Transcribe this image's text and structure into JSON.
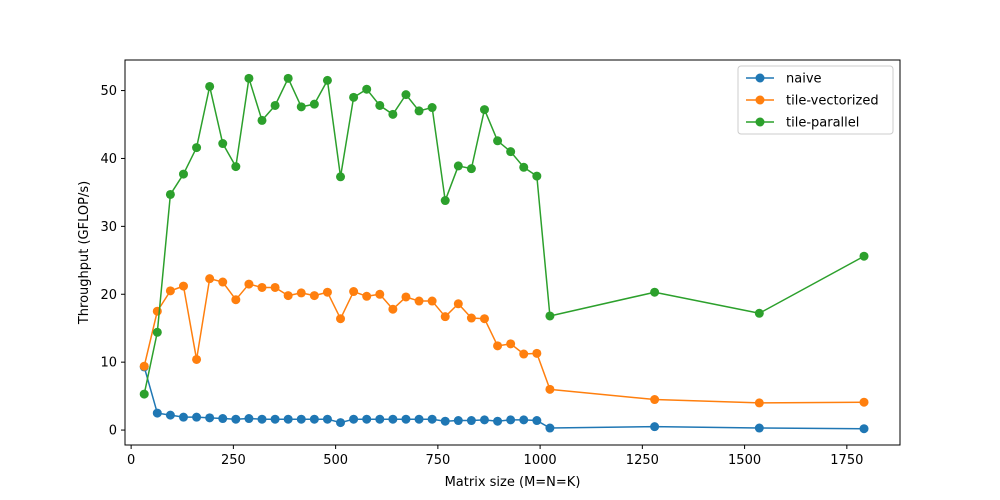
{
  "chart_data": {
    "type": "line",
    "title": "",
    "xlabel": "Matrix size (M=N=K)",
    "ylabel": "Throughput (GFLOP/s)",
    "xlim": [
      -15,
      1880
    ],
    "ylim": [
      -2.2,
      54.5
    ],
    "xticks": [
      0,
      250,
      500,
      750,
      1000,
      1250,
      1500,
      1750
    ],
    "yticks": [
      0,
      10,
      20,
      30,
      40,
      50
    ],
    "grid": false,
    "legend": "top-right",
    "series": [
      {
        "name": "naive",
        "color": "#1f77b4",
        "x": [
          32,
          64,
          96,
          128,
          160,
          192,
          224,
          256,
          288,
          320,
          352,
          384,
          416,
          448,
          480,
          512,
          544,
          576,
          608,
          640,
          672,
          704,
          736,
          768,
          800,
          832,
          864,
          896,
          928,
          960,
          992,
          1024,
          1280,
          1536,
          1792
        ],
        "y": [
          9.3,
          2.5,
          2.2,
          1.9,
          1.9,
          1.8,
          1.7,
          1.6,
          1.7,
          1.6,
          1.6,
          1.6,
          1.6,
          1.6,
          1.6,
          1.1,
          1.6,
          1.6,
          1.6,
          1.6,
          1.6,
          1.6,
          1.6,
          1.3,
          1.4,
          1.4,
          1.5,
          1.3,
          1.5,
          1.5,
          1.4,
          0.3,
          0.5,
          0.3,
          0.2
        ]
      },
      {
        "name": "tile-vectorized",
        "color": "#ff7f0e",
        "x": [
          32,
          64,
          96,
          128,
          160,
          192,
          224,
          256,
          288,
          320,
          352,
          384,
          416,
          448,
          480,
          512,
          544,
          576,
          608,
          640,
          672,
          704,
          736,
          768,
          800,
          832,
          864,
          896,
          928,
          960,
          992,
          1024,
          1280,
          1536,
          1792
        ],
        "y": [
          9.4,
          17.5,
          20.5,
          21.2,
          10.4,
          22.3,
          21.8,
          19.2,
          21.5,
          21.0,
          21.0,
          19.8,
          20.2,
          19.8,
          20.3,
          16.4,
          20.4,
          19.7,
          20.0,
          17.8,
          19.6,
          19.0,
          19.0,
          16.7,
          18.6,
          16.5,
          16.4,
          12.4,
          12.7,
          11.2,
          11.3,
          6.0,
          4.5,
          4.0,
          4.1
        ]
      },
      {
        "name": "tile-parallel",
        "color": "#2ca02c",
        "x": [
          32,
          64,
          96,
          128,
          160,
          192,
          224,
          256,
          288,
          320,
          352,
          384,
          416,
          448,
          480,
          512,
          544,
          576,
          608,
          640,
          672,
          704,
          736,
          768,
          800,
          832,
          864,
          896,
          928,
          960,
          992,
          1024,
          1280,
          1536,
          1792
        ],
        "y": [
          5.3,
          14.4,
          34.7,
          37.7,
          41.6,
          50.6,
          42.2,
          38.8,
          51.8,
          45.6,
          47.8,
          51.8,
          47.6,
          48.0,
          51.5,
          37.3,
          49.0,
          50.2,
          47.8,
          46.5,
          49.4,
          47.0,
          47.5,
          33.8,
          38.9,
          38.5,
          47.2,
          42.6,
          41.0,
          38.7,
          37.4,
          16.8,
          20.3,
          17.2,
          25.6
        ]
      }
    ]
  }
}
